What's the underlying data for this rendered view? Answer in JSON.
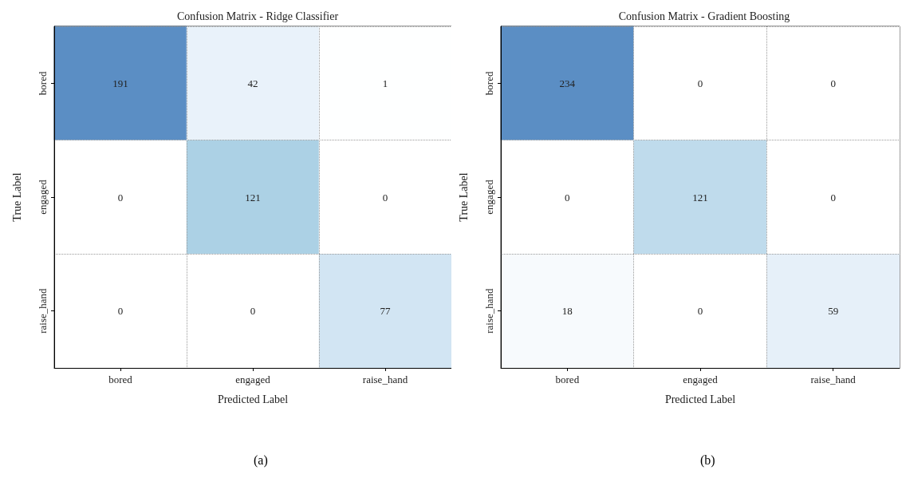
{
  "chart_data": [
    {
      "type": "heatmap",
      "title": "Confusion Matrix - Ridge Classifier",
      "xlabel": "Predicted Label",
      "ylabel": "True Label",
      "categories": [
        "bored",
        "engaged",
        "raise_hand"
      ],
      "y_categories": [
        "bored",
        "engaged",
        "raise_hand"
      ],
      "cells": [
        [
          191,
          42,
          1
        ],
        [
          0,
          121,
          0
        ],
        [
          0,
          0,
          77
        ]
      ],
      "data_labels": true,
      "grid": true,
      "annotations": [
        "(a)"
      ]
    },
    {
      "type": "heatmap",
      "title": "Confusion Matrix - Gradient Boosting",
      "xlabel": "Predicted Label",
      "ylabel": "True Label",
      "categories": [
        "bored",
        "engaged",
        "raise_hand"
      ],
      "y_categories": [
        "bored",
        "engaged",
        "raise_hand"
      ],
      "cells": [
        [
          234,
          0,
          0
        ],
        [
          0,
          121,
          0
        ],
        [
          18,
          0,
          59
        ]
      ],
      "data_labels": true,
      "grid": true,
      "annotations": [
        "(b)"
      ]
    }
  ]
}
